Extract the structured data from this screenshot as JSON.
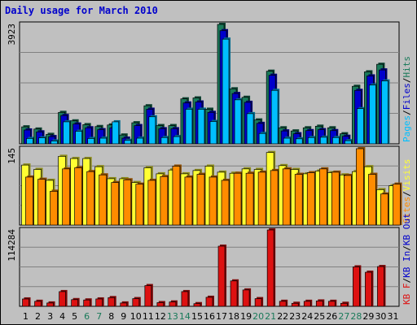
{
  "title": "Daily usage for March 2010",
  "colors": {
    "hits": "#1a7a5a",
    "files": "#0000cc",
    "pages": "#00bfff",
    "visits": "#ffff33",
    "sites": "#ff8c00",
    "kbin": "#ff6600",
    "kbout": "#0000cc",
    "kbf": "#dd1111",
    "weekend": "#1a7a5a",
    "weekday": "#000000"
  },
  "chart_data": [
    {
      "type": "bar",
      "panel": "hits-files-pages",
      "ymax_label": "3923",
      "legend": [
        {
          "text": "Pages",
          "color_key": "pages"
        },
        {
          "text": "/",
          "color_key": "weekday"
        },
        {
          "text": "Files",
          "color_key": "files"
        },
        {
          "text": "/",
          "color_key": "weekday"
        },
        {
          "text": "Hits",
          "color_key": "hits"
        }
      ],
      "categories": [
        "1",
        "2",
        "3",
        "4",
        "5",
        "6",
        "7",
        "8",
        "9",
        "10",
        "11",
        "12",
        "13",
        "14",
        "15",
        "16",
        "17",
        "18",
        "19",
        "20",
        "21",
        "22",
        "23",
        "24",
        "25",
        "26",
        "27",
        "28",
        "29",
        "30",
        "31"
      ],
      "series": [
        {
          "name": "Hits",
          "color_key": "hits",
          "values": [
            540,
            470,
            300,
            1000,
            730,
            610,
            550,
            600,
            280,
            670,
            1210,
            580,
            580,
            1430,
            1460,
            1100,
            3800,
            1750,
            1480,
            760,
            2310,
            510,
            410,
            510,
            560,
            510,
            320,
            1830,
            2290,
            2530,
            0
          ]
        },
        {
          "name": "Files",
          "color_key": "files",
          "values": [
            440,
            380,
            230,
            900,
            630,
            510,
            450,
            510,
            180,
            580,
            1100,
            480,
            480,
            1300,
            1330,
            1000,
            3600,
            1600,
            1320,
            650,
            2180,
            410,
            320,
            420,
            450,
            420,
            240,
            1700,
            2160,
            2350,
            0
          ]
        },
        {
          "name": "Pages",
          "color_key": "pages",
          "values": [
            170,
            190,
            90,
            700,
            400,
            170,
            180,
            700,
            110,
            180,
            860,
            200,
            230,
            1100,
            1100,
            710,
            3330,
            1400,
            960,
            330,
            1700,
            180,
            160,
            200,
            210,
            200,
            100,
            1120,
            1870,
            2000,
            0
          ]
        }
      ]
    },
    {
      "type": "bar",
      "panel": "visits-sites",
      "ymax_label": "145",
      "legend": [
        {
          "text": "Sites",
          "color_key": "sites"
        },
        {
          "text": "/",
          "color_key": "weekday"
        },
        {
          "text": "Visits",
          "color_key": "visits"
        }
      ],
      "categories": [
        "1",
        "2",
        "3",
        "4",
        "5",
        "6",
        "7",
        "8",
        "9",
        "10",
        "11",
        "12",
        "13",
        "14",
        "15",
        "16",
        "17",
        "18",
        "19",
        "20",
        "21",
        "22",
        "23",
        "24",
        "25",
        "26",
        "27",
        "28",
        "29",
        "30",
        "31"
      ],
      "series": [
        {
          "name": "Visits",
          "color_key": "visits",
          "values": [
            110,
            102,
            82,
            126,
            122,
            122,
            107,
            85,
            85,
            78,
            105,
            94,
            101,
            94,
            100,
            108,
            97,
            95,
            103,
            102,
            133,
            109,
            102,
            94,
            99,
            96,
            92,
            98,
            107,
            65,
            72
          ]
        },
        {
          "name": "Sites",
          "color_key": "sites",
          "values": [
            88,
            84,
            62,
            103,
            105,
            98,
            92,
            78,
            83,
            75,
            82,
            89,
            108,
            88,
            93,
            88,
            82,
            95,
            95,
            97,
            100,
            103,
            93,
            96,
            103,
            97,
            91,
            140,
            93,
            57,
            75
          ]
        }
      ]
    },
    {
      "type": "bar",
      "panel": "kbytes",
      "ymax_label": "114284",
      "legend": [
        {
          "text": "KB F",
          "color_key": "kbf"
        },
        {
          "text": "/",
          "color_key": "weekday"
        },
        {
          "text": "KB In",
          "color_key": "kbout"
        },
        {
          "text": "/",
          "color_key": "weekday"
        },
        {
          "text": "KB Out",
          "color_key": "kbout"
        }
      ],
      "categories": [
        "1",
        "2",
        "3",
        "4",
        "5",
        "6",
        "7",
        "8",
        "9",
        "10",
        "11",
        "12",
        "13",
        "14",
        "15",
        "16",
        "17",
        "18",
        "19",
        "20",
        "21",
        "22",
        "23",
        "24",
        "25",
        "26",
        "27",
        "28",
        "29",
        "30",
        "31"
      ],
      "series": [
        {
          "name": "KB F",
          "color_key": "kbf",
          "values": [
            11000,
            7500,
            5000,
            22000,
            10000,
            9500,
            11000,
            13000,
            5000,
            11500,
            31000,
            5500,
            6500,
            22000,
            4000,
            13500,
            90000,
            38000,
            24500,
            11500,
            114284,
            7500,
            4500,
            7500,
            8000,
            7500,
            4500,
            59000,
            51000,
            59500,
            0
          ]
        }
      ]
    }
  ],
  "x_labels": [
    {
      "day": "1",
      "weekend": false
    },
    {
      "day": "2",
      "weekend": false
    },
    {
      "day": "3",
      "weekend": false
    },
    {
      "day": "4",
      "weekend": false
    },
    {
      "day": "5",
      "weekend": false
    },
    {
      "day": "6",
      "weekend": true
    },
    {
      "day": "7",
      "weekend": true
    },
    {
      "day": "8",
      "weekend": false
    },
    {
      "day": "9",
      "weekend": false
    },
    {
      "day": "10",
      "weekend": false
    },
    {
      "day": "11",
      "weekend": false
    },
    {
      "day": "12",
      "weekend": false
    },
    {
      "day": "13",
      "weekend": true
    },
    {
      "day": "14",
      "weekend": true
    },
    {
      "day": "15",
      "weekend": false
    },
    {
      "day": "16",
      "weekend": false
    },
    {
      "day": "17",
      "weekend": false
    },
    {
      "day": "18",
      "weekend": false
    },
    {
      "day": "19",
      "weekend": false
    },
    {
      "day": "20",
      "weekend": true
    },
    {
      "day": "21",
      "weekend": true
    },
    {
      "day": "22",
      "weekend": false
    },
    {
      "day": "23",
      "weekend": false
    },
    {
      "day": "24",
      "weekend": false
    },
    {
      "day": "25",
      "weekend": false
    },
    {
      "day": "26",
      "weekend": false
    },
    {
      "day": "27",
      "weekend": true
    },
    {
      "day": "28",
      "weekend": true
    },
    {
      "day": "29",
      "weekend": false
    },
    {
      "day": "30",
      "weekend": false
    },
    {
      "day": "31",
      "weekend": false
    }
  ]
}
